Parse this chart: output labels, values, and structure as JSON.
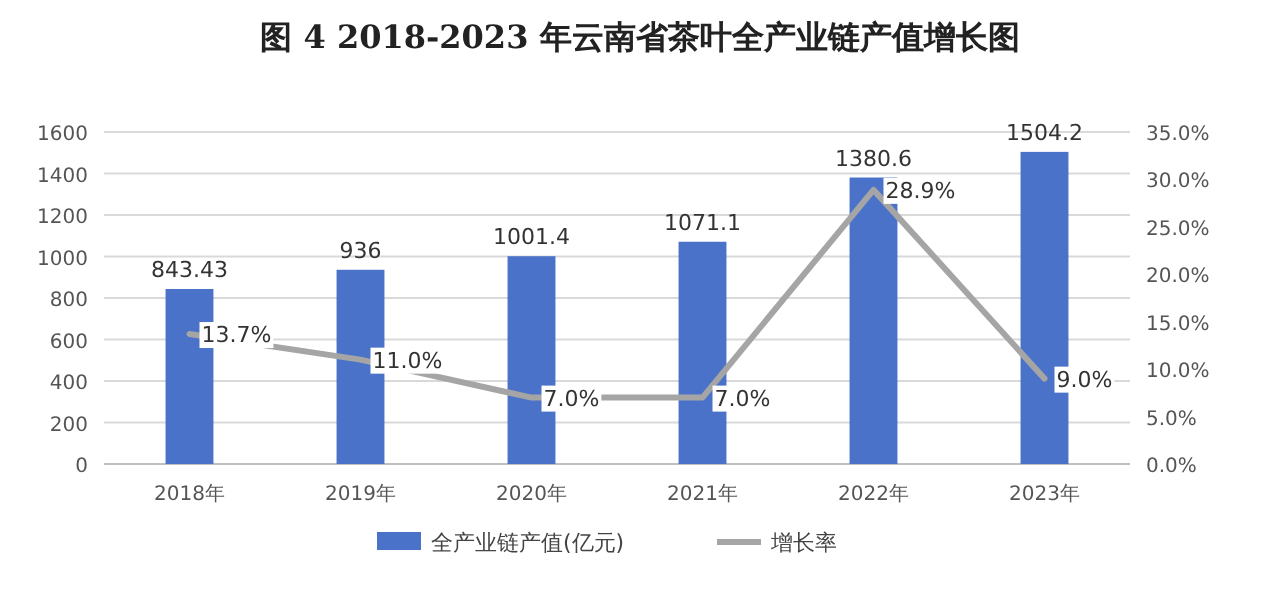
{
  "chart_data": {
    "type": "bar",
    "title": "图 4   2018-2023 年云南省茶叶全产业链产值增长图",
    "categories": [
      "2018年",
      "2019年",
      "2020年",
      "2021年",
      "2022年",
      "2023年"
    ],
    "series": [
      {
        "name": "全产业链产值(亿元)",
        "color": "#4a72c8",
        "values": [
          843.43,
          936,
          1001.4,
          1071.1,
          1380.6,
          1504.2
        ],
        "value_labels": [
          "843.43",
          "936",
          "1001.4",
          "1071.1",
          "1380.6",
          "1504.2"
        ]
      },
      {
        "name": "增长率",
        "type": "line",
        "axis": "y2",
        "color": "#a5a5a5",
        "values": [
          13.7,
          11.0,
          7.0,
          7.0,
          28.9,
          9.0
        ],
        "value_labels": [
          "13.7%",
          "11.0%",
          "7.0%",
          "7.0%",
          "28.9%",
          "9.0%"
        ]
      }
    ],
    "ylim": [
      0,
      1600
    ],
    "yticks": [
      0,
      200,
      400,
      600,
      800,
      1000,
      1200,
      1400,
      1600
    ],
    "y2lim": [
      0,
      35
    ],
    "y2ticks": [
      {
        "value": 0,
        "label": "0.0%"
      },
      {
        "value": 5,
        "label": "5.0%"
      },
      {
        "value": 10,
        "label": "10.0%"
      },
      {
        "value": 15,
        "label": "15.0%"
      },
      {
        "value": 20,
        "label": "20.0%"
      },
      {
        "value": 25,
        "label": "25.0%"
      },
      {
        "value": 30,
        "label": "30.0%"
      },
      {
        "value": 35,
        "label": "35.0%"
      }
    ],
    "grid": "y",
    "legend": "bottom",
    "marker": "none",
    "line_style": "solid"
  }
}
